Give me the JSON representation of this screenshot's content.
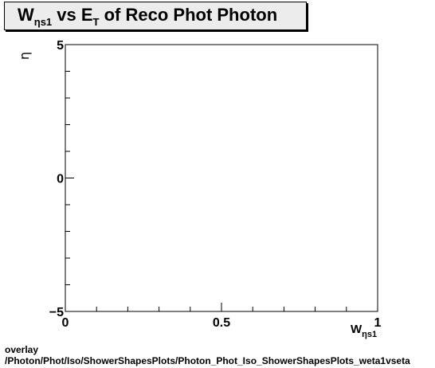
{
  "chart_data": {
    "type": "scatter",
    "title": {
      "main": "W",
      "sub": "ηs1",
      "mid": " vs E",
      "sub2": "T",
      "tail": " of Reco Phot Photon"
    },
    "xlabel": {
      "main": "W",
      "sub": "ηs1"
    },
    "ylabel": "η",
    "xlim": [
      0,
      1
    ],
    "ylim": [
      -5,
      5
    ],
    "x_ticks": [
      "0",
      "0.5",
      "1"
    ],
    "y_ticks": [
      "5",
      "0",
      "−5"
    ],
    "x_tick_values": [
      0,
      0.5,
      1
    ],
    "y_tick_values": [
      5,
      0,
      -5
    ],
    "series": [],
    "grid": false
  },
  "footer": {
    "line1": "overlay",
    "line2": "/Photon/Phot/Iso/ShowerShapesPlots/Photon_Phot_Iso_ShowerShapesPlots_weta1vseta"
  }
}
